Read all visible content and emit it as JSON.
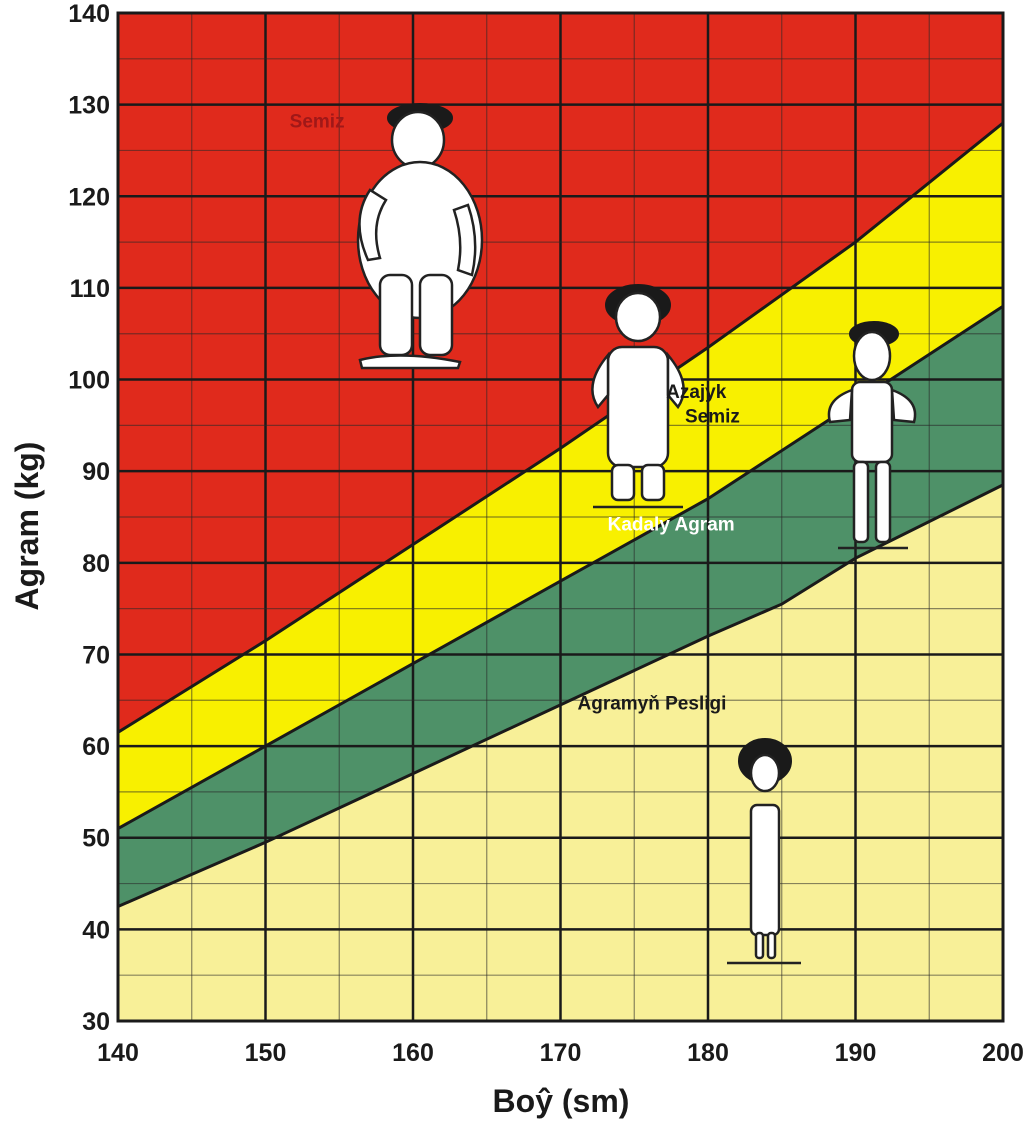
{
  "chart_data": {
    "type": "area",
    "xlabel": "Boŷ (sm)",
    "ylabel": "Agram (kg)",
    "xlim": [
      140,
      200
    ],
    "ylim": [
      30,
      140
    ],
    "x_ticks": [
      140,
      150,
      160,
      170,
      180,
      190,
      200
    ],
    "y_ticks": [
      30,
      40,
      50,
      60,
      70,
      80,
      90,
      100,
      110,
      120,
      130,
      140
    ],
    "grid": true,
    "boundaries": [
      {
        "x": [
          140,
          150,
          160,
          170,
          180,
          185,
          190,
          200
        ],
        "y": [
          42.5,
          49.5,
          57,
          64.5,
          72,
          75.5,
          80.5,
          88.5
        ]
      },
      {
        "x": [
          140,
          150,
          160,
          170,
          180,
          190,
          200
        ],
        "y": [
          51,
          60,
          69,
          78,
          87,
          97.5,
          108
        ]
      },
      {
        "x": [
          140,
          150,
          160,
          170,
          180,
          190,
          200
        ],
        "y": [
          61.5,
          71.5,
          82,
          92.5,
          103.5,
          115,
          128
        ]
      }
    ],
    "zones": [
      {
        "label": "Agramyň Pesligi",
        "color": "#f8f098"
      },
      {
        "label": "Kadaly Agram",
        "color": "#4e9168"
      },
      {
        "label": "Azajyk Semiz",
        "color": "#f8f000"
      },
      {
        "label": "Semiz",
        "color": "#e02a1c"
      }
    ],
    "annotations": [
      {
        "text": "Semiz",
        "x": 153.5,
        "y": 127.5
      },
      {
        "text": "Azajyk",
        "x": 179.2,
        "y": 98
      },
      {
        "text": "Semiz",
        "x": 180.3,
        "y": 95.3
      },
      {
        "text": "Kadaly Agram",
        "x": 177.5,
        "y": 83.5
      },
      {
        "text": "Agramyň Pesligi",
        "x": 176.2,
        "y": 64
      }
    ]
  }
}
